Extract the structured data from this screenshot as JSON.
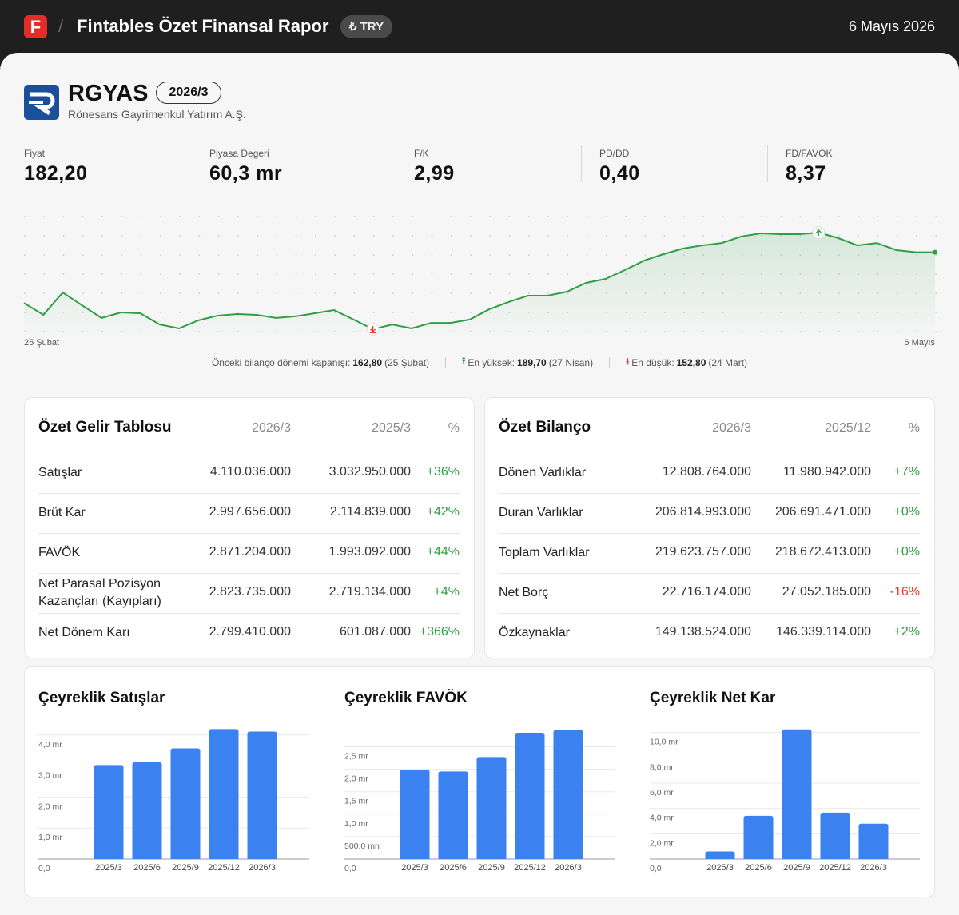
{
  "header": {
    "logo": "F",
    "title": "Fintables Özet Finansal Rapor",
    "currency": "₺ TRY",
    "date": "6 Mayıs 2026"
  },
  "company": {
    "ticker": "RGYAS",
    "period": "2026/3",
    "name": "Rönesans Gayrimenkul Yatırım A.Ş."
  },
  "metrics": [
    {
      "label": "Fiyat",
      "value": "182,20"
    },
    {
      "label": "Piyasa Degeri",
      "value": "60,3 mr"
    },
    {
      "label": "F/K",
      "value": "2,99"
    },
    {
      "label": "PD/DD",
      "value": "0,40"
    },
    {
      "label": "FD/FAVÖK",
      "value": "8,37"
    }
  ],
  "income_table": {
    "title": "Özet Gelir Tablosu",
    "columns": [
      "2026/3",
      "2025/3",
      "%"
    ],
    "rows": [
      [
        "Satışlar",
        "4.110.036.000",
        "3.032.950.000",
        "+36%"
      ],
      [
        "Brüt Kar",
        "2.997.656.000",
        "2.114.839.000",
        "+42%"
      ],
      [
        "FAVÖK",
        "2.871.204.000",
        "1.993.092.000",
        "+44%"
      ],
      [
        "Net Parasal Pozisyon Kazançları (Kayıpları)",
        "2.823.735.000",
        "2.719.134.000",
        "+4%"
      ],
      [
        "Net Dönem Karı",
        "2.799.410.000",
        "601.087.000",
        "+366%"
      ]
    ]
  },
  "balance_table": {
    "title": "Özet Bilanço",
    "columns": [
      "2026/3",
      "2025/12",
      "%"
    ],
    "rows": [
      [
        "Dönen Varlıklar",
        "12.808.764.000",
        "11.980.942.000",
        "+7%"
      ],
      [
        "Duran Varlıklar",
        "206.814.993.000",
        "206.691.471.000",
        "+0%"
      ],
      [
        "Toplam Varlıklar",
        "219.623.757.000",
        "218.672.413.000",
        "+0%"
      ],
      [
        "Net Borç",
        "22.716.174.000",
        "27.052.185.000",
        "-16%"
      ],
      [
        "Özkaynaklar",
        "149.138.524.000",
        "146.339.114.000",
        "+2%"
      ]
    ]
  },
  "chart_data": [
    {
      "type": "line",
      "x_start_label": "25 Şubat",
      "x_end_label": "6 Mayıs",
      "color": "#2e9e44",
      "values": [
        162.8,
        158.3,
        166.8,
        161.9,
        157.1,
        159.2,
        158.9,
        154.6,
        153.1,
        156.2,
        158.0,
        158.6,
        158.3,
        157.1,
        157.7,
        158.9,
        160.1,
        156.5,
        152.8,
        154.6,
        153.1,
        155.2,
        155.2,
        156.5,
        160.4,
        163.2,
        165.6,
        165.6,
        167.1,
        170.5,
        172.0,
        175.4,
        179.0,
        181.5,
        183.6,
        184.8,
        185.7,
        188.2,
        189.4,
        189.1,
        189.1,
        189.7,
        187.6,
        184.8,
        185.7,
        183.0,
        182.2,
        182.2
      ],
      "annotations": [
        {
          "label": "Önceki bilanço dönemi kapanışı:",
          "value": "162,80",
          "note": "(25 Şubat)"
        },
        {
          "label": "En yüksek:",
          "value": "189,70",
          "note": "(27 Nisan)"
        },
        {
          "label": "En düşük:",
          "value": "152,80",
          "note": "(24 Mart)"
        }
      ]
    },
    {
      "type": "bar",
      "title": "Çeyreklik Satışlar",
      "color": "#3b82f0",
      "categories": [
        "2025/3",
        "2025/6",
        "2025/9",
        "2025/12",
        "2026/3"
      ],
      "values": [
        3.03,
        3.12,
        3.57,
        4.19,
        4.11
      ],
      "ylim": [
        0,
        4.2
      ],
      "yticks": [
        {
          "value": 0,
          "label": "0,0"
        },
        {
          "value": 1,
          "label": "1,0 mr"
        },
        {
          "value": 2,
          "label": "2,0 mr"
        },
        {
          "value": 3,
          "label": "3,0 mr"
        },
        {
          "value": 4,
          "label": "4,0 mr"
        }
      ],
      "grid": true
    },
    {
      "type": "bar",
      "title": "Çeyreklik FAVÖK",
      "color": "#3b82f0",
      "categories": [
        "2025/3",
        "2025/6",
        "2025/9",
        "2025/12",
        "2026/3"
      ],
      "values": [
        1.99,
        1.95,
        2.27,
        2.81,
        2.87
      ],
      "ylim": [
        0,
        2.9
      ],
      "yticks": [
        {
          "value": 0,
          "label": "0,0"
        },
        {
          "value": 0.5,
          "label": "500,0 mn"
        },
        {
          "value": 1,
          "label": "1,0 mr"
        },
        {
          "value": 1.5,
          "label": "1,5 mr"
        },
        {
          "value": 2,
          "label": "2,0 mr"
        },
        {
          "value": 2.5,
          "label": "2,5 mr"
        }
      ],
      "grid": true
    },
    {
      "type": "bar",
      "title": "Çeyreklik Net Kar",
      "color": "#3b82f0",
      "categories": [
        "2025/3",
        "2025/6",
        "2025/9",
        "2025/12",
        "2026/3"
      ],
      "values": [
        0.6,
        3.42,
        10.25,
        3.67,
        2.8
      ],
      "ylim": [
        0,
        10.3
      ],
      "yticks": [
        {
          "value": 0,
          "label": "0,0"
        },
        {
          "value": 2,
          "label": "2,0 mr"
        },
        {
          "value": 4,
          "label": "4,0 mr"
        },
        {
          "value": 6,
          "label": "6,0 mr"
        },
        {
          "value": 8,
          "label": "8,0 mr"
        },
        {
          "value": 10,
          "label": "10,0 mr"
        }
      ],
      "grid": true
    }
  ]
}
